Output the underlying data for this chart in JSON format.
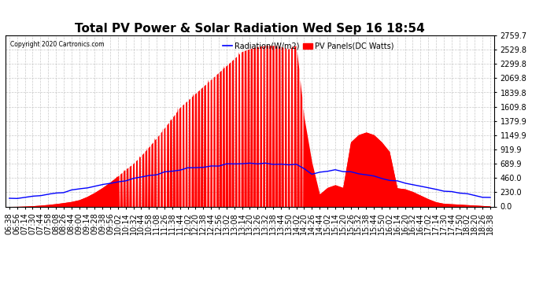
{
  "title": "Total PV Power & Solar Radiation Wed Sep 16 18:54",
  "copyright": "Copyright 2020 Cartronics.com",
  "legend_radiation": "Radiation(W/m2)",
  "legend_pv": "PV Panels(DC Watts)",
  "y_min": 0.0,
  "y_max": 2759.7,
  "y_ticks": [
    0.0,
    230.0,
    460.0,
    689.9,
    919.9,
    1149.9,
    1379.9,
    1609.8,
    1839.8,
    2069.8,
    2299.8,
    2529.8,
    2759.7
  ],
  "pv_color": "#FF0000",
  "radiation_color": "#0000FF",
  "background_color": "#FFFFFF",
  "grid_color": "#BBBBBB",
  "title_fontsize": 11,
  "axis_fontsize": 7,
  "x_labels": [
    "06:38",
    "06:56",
    "07:14",
    "07:30",
    "07:44",
    "07:58",
    "08:08",
    "08:26",
    "08:44",
    "09:00",
    "09:14",
    "09:28",
    "09:38",
    "09:56",
    "10:02",
    "10:14",
    "10:32",
    "10:44",
    "10:58",
    "11:08",
    "11:26",
    "11:38",
    "11:44",
    "12:02",
    "12:20",
    "12:38",
    "12:44",
    "12:56",
    "13:02",
    "13:08",
    "13:14",
    "13:20",
    "13:26",
    "13:32",
    "13:38",
    "13:44",
    "13:50",
    "14:02",
    "14:20",
    "14:26",
    "14:44",
    "15:02",
    "15:14",
    "15:20",
    "15:26",
    "15:32",
    "15:38",
    "15:44",
    "15:50",
    "16:02",
    "16:14",
    "16:20",
    "16:32",
    "16:44",
    "17:02",
    "17:14",
    "17:30",
    "17:44",
    "17:50",
    "18:02",
    "18:20",
    "18:26",
    "18:38"
  ]
}
